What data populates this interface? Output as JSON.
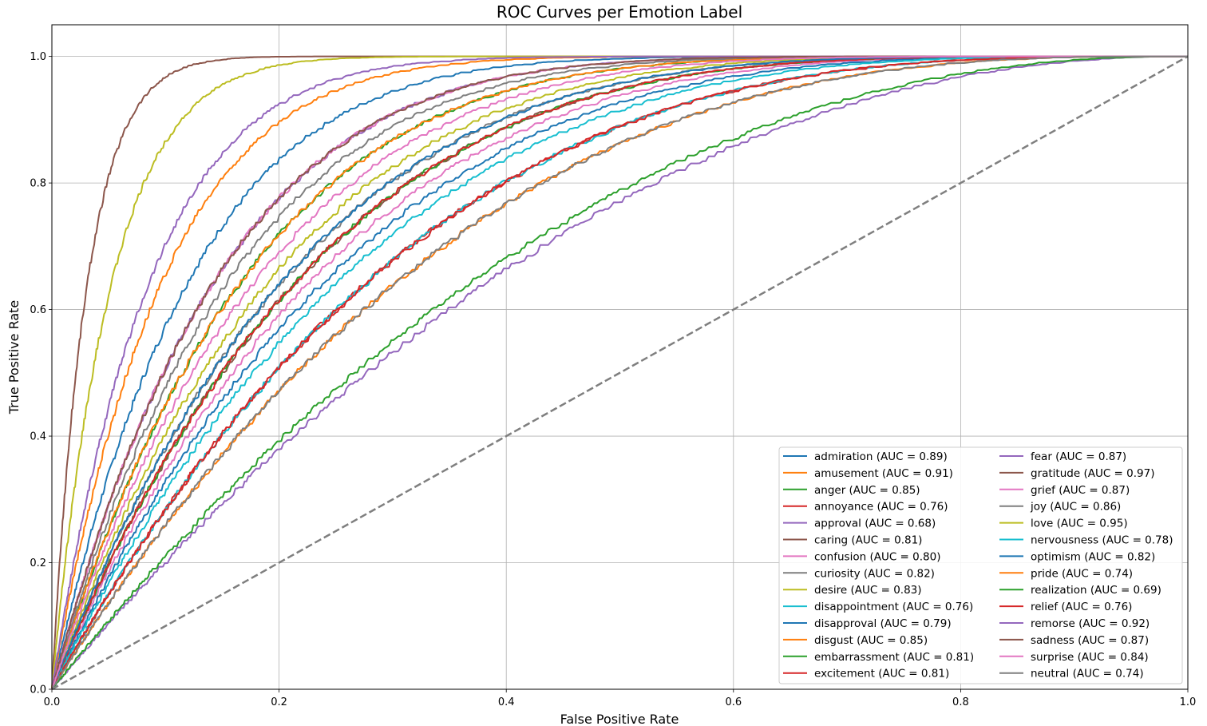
{
  "chart_data": {
    "type": "line",
    "title": "ROC Curves per Emotion Label",
    "xlabel": "False Positive Rate",
    "ylabel": "True Positive Rate",
    "xlim": [
      0.0,
      1.0
    ],
    "ylim": [
      0.0,
      1.05
    ],
    "xticks": [
      "0.0",
      "0.2",
      "0.4",
      "0.6",
      "0.8",
      "1.0"
    ],
    "yticks": [
      "0.0",
      "0.2",
      "0.4",
      "0.6",
      "0.8",
      "1.0"
    ],
    "grid": true,
    "legend_position": "lower-right",
    "legend_columns": 2,
    "baseline": {
      "x": [
        0,
        1
      ],
      "y": [
        0,
        1
      ],
      "color": "#7f7f7f",
      "style": "dashed"
    },
    "series": [
      {
        "name": "admiration (AUC = 0.89)",
        "auc": 0.89,
        "color": "#1f77b4"
      },
      {
        "name": "amusement (AUC = 0.91)",
        "auc": 0.91,
        "color": "#ff7f0e"
      },
      {
        "name": "anger (AUC = 0.85)",
        "auc": 0.85,
        "color": "#2ca02c"
      },
      {
        "name": "annoyance (AUC = 0.76)",
        "auc": 0.76,
        "color": "#d62728"
      },
      {
        "name": "approval (AUC = 0.68)",
        "auc": 0.68,
        "color": "#9467bd"
      },
      {
        "name": "caring (AUC = 0.81)",
        "auc": 0.81,
        "color": "#8c564b"
      },
      {
        "name": "confusion (AUC = 0.80)",
        "auc": 0.8,
        "color": "#e377c2"
      },
      {
        "name": "curiosity (AUC = 0.82)",
        "auc": 0.82,
        "color": "#7f7f7f"
      },
      {
        "name": "desire (AUC = 0.83)",
        "auc": 0.83,
        "color": "#bcbd22"
      },
      {
        "name": "disappointment (AUC = 0.76)",
        "auc": 0.76,
        "color": "#17becf"
      },
      {
        "name": "disapproval (AUC = 0.79)",
        "auc": 0.79,
        "color": "#1f77b4"
      },
      {
        "name": "disgust (AUC = 0.85)",
        "auc": 0.85,
        "color": "#ff7f0e"
      },
      {
        "name": "embarrassment (AUC = 0.81)",
        "auc": 0.81,
        "color": "#2ca02c"
      },
      {
        "name": "excitement (AUC = 0.81)",
        "auc": 0.81,
        "color": "#d62728"
      },
      {
        "name": "fear (AUC = 0.87)",
        "auc": 0.87,
        "color": "#9467bd"
      },
      {
        "name": "gratitude (AUC = 0.97)",
        "auc": 0.97,
        "color": "#8c564b"
      },
      {
        "name": "grief (AUC = 0.87)",
        "auc": 0.87,
        "color": "#e377c2"
      },
      {
        "name": "joy (AUC = 0.86)",
        "auc": 0.86,
        "color": "#7f7f7f"
      },
      {
        "name": "love (AUC = 0.95)",
        "auc": 0.95,
        "color": "#bcbd22"
      },
      {
        "name": "nervousness (AUC = 0.78)",
        "auc": 0.78,
        "color": "#17becf"
      },
      {
        "name": "optimism (AUC = 0.82)",
        "auc": 0.82,
        "color": "#1f77b4"
      },
      {
        "name": "pride (AUC = 0.74)",
        "auc": 0.74,
        "color": "#ff7f0e"
      },
      {
        "name": "realization (AUC = 0.69)",
        "auc": 0.69,
        "color": "#2ca02c"
      },
      {
        "name": "relief (AUC = 0.76)",
        "auc": 0.76,
        "color": "#d62728"
      },
      {
        "name": "remorse (AUC = 0.92)",
        "auc": 0.92,
        "color": "#9467bd"
      },
      {
        "name": "sadness (AUC = 0.87)",
        "auc": 0.87,
        "color": "#8c564b"
      },
      {
        "name": "surprise (AUC = 0.84)",
        "auc": 0.84,
        "color": "#e377c2"
      },
      {
        "name": "neutral (AUC = 0.74)",
        "auc": 0.74,
        "color": "#7f7f7f"
      }
    ]
  }
}
